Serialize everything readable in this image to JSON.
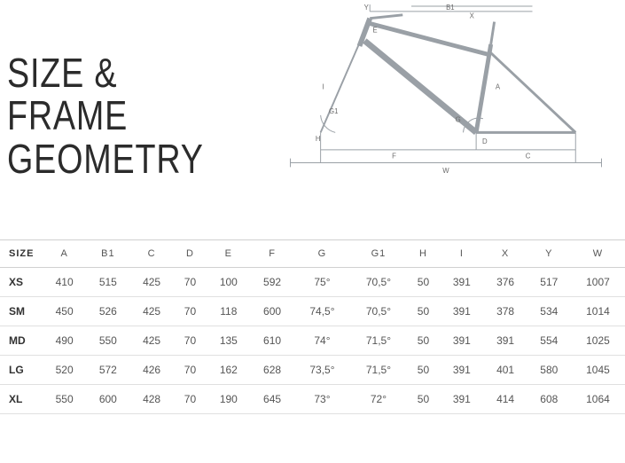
{
  "title": {
    "line1": "SIZE & FRAME",
    "line2": "GEOMETRY"
  },
  "diagram": {
    "stroke": "#9aa0a6",
    "label_color": "#6b6b6b",
    "label_fontsize": 8,
    "labels": [
      "A",
      "B1",
      "C",
      "D",
      "E",
      "F",
      "G",
      "G1",
      "H",
      "I",
      "X",
      "Y",
      "W"
    ]
  },
  "table": {
    "columns": [
      "SIZE",
      "A",
      "B1",
      "C",
      "D",
      "E",
      "F",
      "G",
      "G1",
      "H",
      "I",
      "X",
      "Y",
      "W"
    ],
    "rows": [
      [
        "XS",
        "410",
        "515",
        "425",
        "70",
        "100",
        "592",
        "75°",
        "70,5°",
        "50",
        "391",
        "376",
        "517",
        "1007"
      ],
      [
        "SM",
        "450",
        "526",
        "425",
        "70",
        "118",
        "600",
        "74,5°",
        "70,5°",
        "50",
        "391",
        "378",
        "534",
        "1014"
      ],
      [
        "MD",
        "490",
        "550",
        "425",
        "70",
        "135",
        "610",
        "74°",
        "71,5°",
        "50",
        "391",
        "391",
        "554",
        "1025"
      ],
      [
        "LG",
        "520",
        "572",
        "426",
        "70",
        "162",
        "628",
        "73,5°",
        "71,5°",
        "50",
        "391",
        "401",
        "580",
        "1045"
      ],
      [
        "XL",
        "550",
        "600",
        "428",
        "70",
        "190",
        "645",
        "73°",
        "72°",
        "50",
        "391",
        "414",
        "608",
        "1064"
      ]
    ],
    "header_border": "#d0d0d0",
    "row_border": "#e0e0e0",
    "font_size": 12
  }
}
